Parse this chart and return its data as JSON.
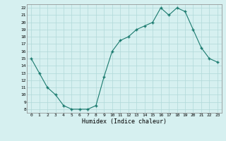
{
  "x": [
    0,
    1,
    2,
    3,
    4,
    5,
    6,
    7,
    8,
    9,
    10,
    11,
    12,
    13,
    14,
    15,
    16,
    17,
    18,
    19,
    20,
    21,
    22,
    23
  ],
  "y": [
    15,
    13,
    11,
    10,
    8.5,
    8,
    8,
    8,
    8.5,
    12.5,
    16,
    17.5,
    18,
    19,
    19.5,
    20,
    22,
    21,
    22,
    21.5,
    19,
    16.5,
    15,
    14.5
  ],
  "line_color": "#1a7a6e",
  "marker_color": "#1a7a6e",
  "bg_color": "#d6f0f0",
  "grid_major_color": "#b0d8d8",
  "grid_minor_color": "#c8e8e8",
  "xlabel": "Humidex (Indice chaleur)",
  "ylabel_ticks": [
    8,
    9,
    10,
    11,
    12,
    13,
    14,
    15,
    16,
    17,
    18,
    19,
    20,
    21,
    22
  ],
  "xlim": [
    -0.5,
    23.5
  ],
  "ylim": [
    7.5,
    22.5
  ],
  "xticks": [
    0,
    1,
    2,
    3,
    4,
    5,
    6,
    7,
    8,
    9,
    10,
    11,
    12,
    13,
    14,
    15,
    16,
    17,
    18,
    19,
    20,
    21,
    22,
    23
  ]
}
